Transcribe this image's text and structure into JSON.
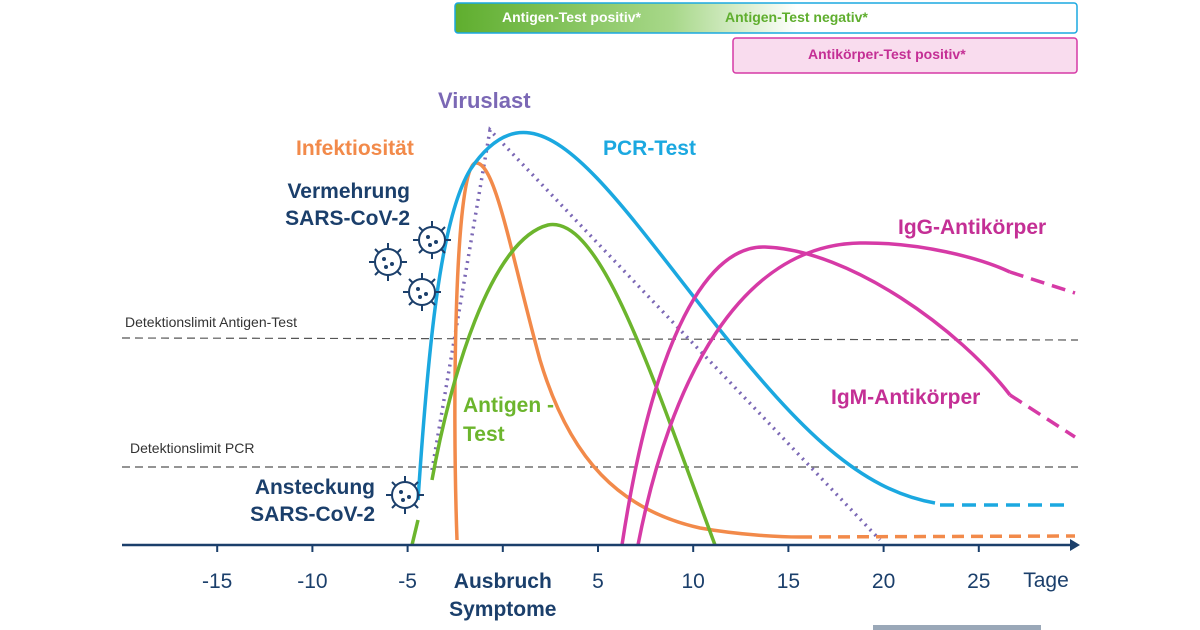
{
  "chart_data": {
    "type": "line",
    "xlim": [
      -20,
      30
    ],
    "xticks": [
      -15,
      -10,
      -5,
      {
        "value": 0,
        "label": "Ausbruch Symptome"
      },
      5,
      10,
      15,
      20,
      25
    ],
    "x_label": "Tage",
    "top_bar": {
      "left": "Antigen-Test positiv*",
      "right": "Antigen-Test negativ*"
    },
    "antibody_bar": "Antikörper-Test positiv*",
    "detection_limits": [
      "Detektionslimit  Antigen-Test",
      "Detektionslimit  PCR"
    ],
    "curve_labels": {
      "viral_load": "Viruslast",
      "infectiousness": "Infektiosität",
      "pcr": "PCR-Test",
      "replication": "Vermehrung SARS-CoV-2",
      "antigen": "Antigen -Test",
      "igg": "IgG-Antikörper",
      "igm": "IgM-Antikörper",
      "infection": "Ansteckung SARS-CoV-2"
    }
  }
}
